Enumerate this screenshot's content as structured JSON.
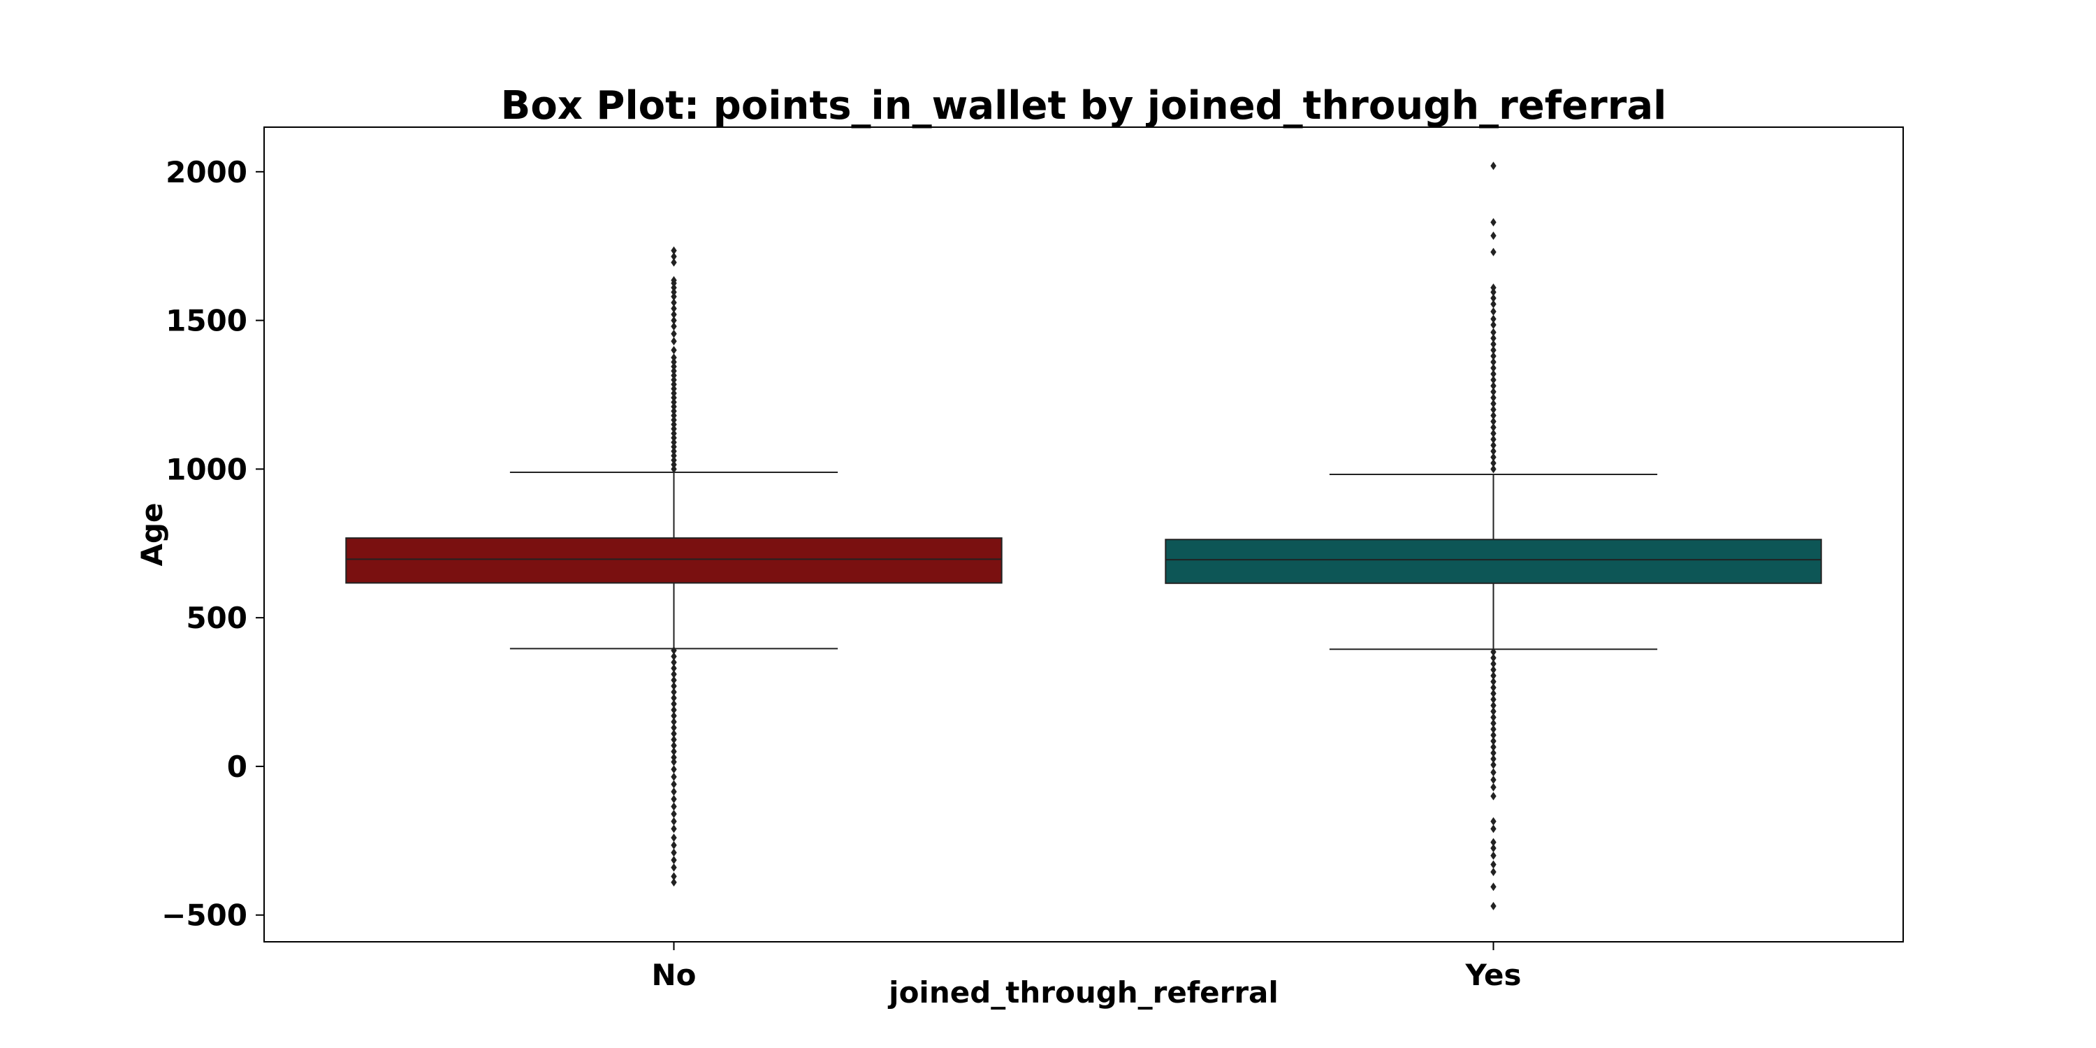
{
  "chart_data": {
    "type": "box",
    "title": "Box Plot: points_in_wallet by joined_through_referral",
    "xlabel": "joined_through_referral",
    "ylabel": "Age",
    "categories": [
      "No",
      "Yes"
    ],
    "ylim": [
      -590,
      2150
    ],
    "yticks": [
      -500,
      0,
      500,
      1000,
      1500,
      2000
    ],
    "ytick_labels": [
      "−500",
      "0",
      "500",
      "1000",
      "1500",
      "2000"
    ],
    "grid": false,
    "legend": "none",
    "boxes": [
      {
        "category": "No",
        "color": "#7a1010",
        "q1": 617,
        "median": 697,
        "q3": 768,
        "whisker_low": 396,
        "whisker_high": 989,
        "outliers": [
          1735,
          1715,
          1695,
          1635,
          1625,
          1610,
          1595,
          1580,
          1560,
          1540,
          1520,
          1500,
          1480,
          1455,
          1430,
          1400,
          1375,
          1360,
          1345,
          1330,
          1315,
          1300,
          1285,
          1270,
          1255,
          1240,
          1225,
          1210,
          1195,
          1180,
          1165,
          1150,
          1135,
          1120,
          1105,
          1090,
          1075,
          1060,
          1045,
          1030,
          1015,
          1000,
          390,
          370,
          350,
          330,
          310,
          290,
          270,
          250,
          230,
          210,
          190,
          170,
          150,
          130,
          110,
          90,
          70,
          50,
          30,
          15,
          -10,
          -35,
          -60,
          -85,
          -110,
          -135,
          -160,
          -185,
          -210,
          -240,
          -265,
          -290,
          -315,
          -340,
          -370,
          -390
        ]
      },
      {
        "category": "Yes",
        "color": "#0d5656",
        "q1": 616,
        "median": 695,
        "q3": 763,
        "whisker_low": 394,
        "whisker_high": 982,
        "outliers": [
          2020,
          1830,
          1785,
          1730,
          1610,
          1595,
          1575,
          1555,
          1530,
          1505,
          1485,
          1460,
          1440,
          1420,
          1400,
          1380,
          1360,
          1340,
          1320,
          1300,
          1280,
          1260,
          1240,
          1220,
          1200,
          1180,
          1160,
          1140,
          1120,
          1100,
          1080,
          1060,
          1040,
          1020,
          1000,
          385,
          365,
          345,
          325,
          305,
          285,
          265,
          245,
          225,
          205,
          185,
          165,
          145,
          125,
          105,
          85,
          65,
          45,
          25,
          5,
          -20,
          -45,
          -70,
          -100,
          -185,
          -210,
          -255,
          -275,
          -300,
          -330,
          -355,
          -405,
          -470
        ]
      }
    ]
  }
}
